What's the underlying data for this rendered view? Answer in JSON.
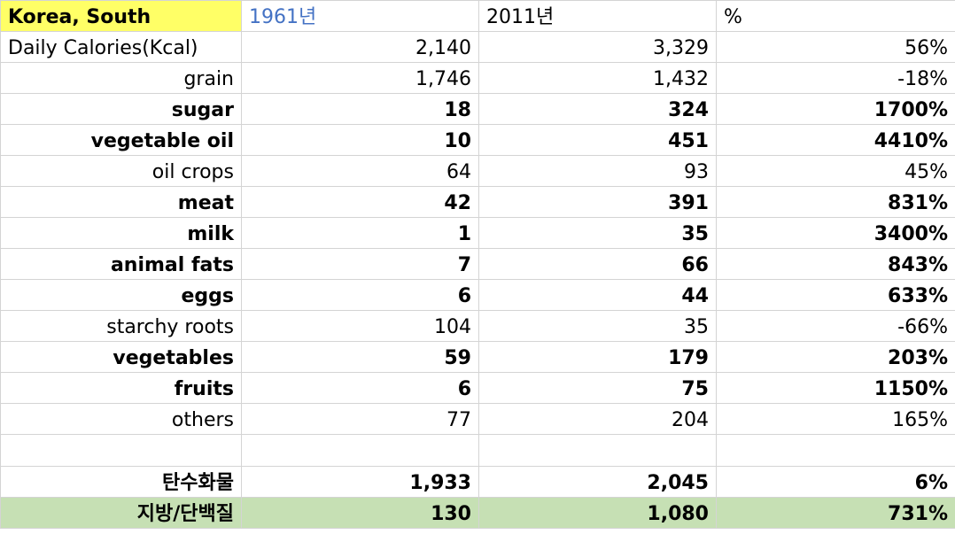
{
  "colors": {
    "highlight_yellow": "#ffff66",
    "highlight_green": "#c6e0b4",
    "value_blue": "#4472c4",
    "gridline": "#d4d4d4"
  },
  "header": {
    "country": "Korea, South",
    "col1": "1961년",
    "col2": "2011년",
    "col3": "%"
  },
  "rows": [
    {
      "label": "Daily Calories(Kcal)",
      "v1961": "2,140",
      "v2011": "3,329",
      "pct": "56%"
    },
    {
      "label": "grain",
      "v1961": "1,746",
      "v2011": "1,432",
      "pct": "-18%"
    },
    {
      "label": "sugar",
      "v1961": "18",
      "v2011": "324",
      "pct": "1700%"
    },
    {
      "label": "vegetable oil",
      "v1961": "10",
      "v2011": "451",
      "pct": "4410%"
    },
    {
      "label": "oil crops",
      "v1961": "64",
      "v2011": "93",
      "pct": "45%"
    },
    {
      "label": "meat",
      "v1961": "42",
      "v2011": "391",
      "pct": "831%"
    },
    {
      "label": "milk",
      "v1961": "1",
      "v2011": "35",
      "pct": "3400%"
    },
    {
      "label": "animal fats",
      "v1961": "7",
      "v2011": "66",
      "pct": "843%"
    },
    {
      "label": "eggs",
      "v1961": "6",
      "v2011": "44",
      "pct": "633%"
    },
    {
      "label": "starchy roots",
      "v1961": "104",
      "v2011": "35",
      "pct": "-66%"
    },
    {
      "label": "vegetables",
      "v1961": "59",
      "v2011": "179",
      "pct": "203%"
    },
    {
      "label": "fruits",
      "v1961": "6",
      "v2011": "75",
      "pct": "1150%"
    },
    {
      "label": "others",
      "v1961": "77",
      "v2011": "204",
      "pct": "165%"
    },
    {
      "label": "",
      "v1961": "",
      "v2011": "",
      "pct": ""
    },
    {
      "label": "탄수화물",
      "v1961": "1,933",
      "v2011": "2,045",
      "pct": "6%"
    },
    {
      "label": "지방/단백질",
      "v1961": "130",
      "v2011": "1,080",
      "pct": "731%"
    }
  ]
}
